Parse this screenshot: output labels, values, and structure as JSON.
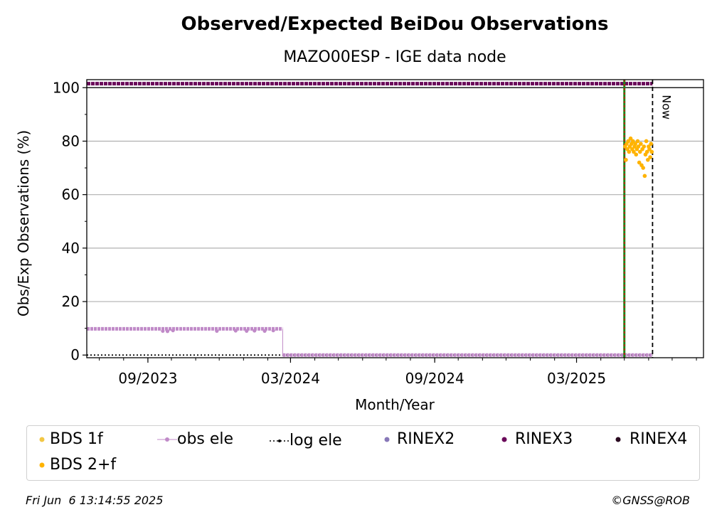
{
  "chart_data": {
    "type": "scatter",
    "title": "Observed/Expected BeiDou Observations",
    "subtitle": "MAZO00ESP - IGE data node",
    "xlabel": "Month/Year",
    "ylabel": "Obs/Exp Observations (%)",
    "x_ticks": [
      "09/2023",
      "03/2024",
      "09/2024",
      "03/2025"
    ],
    "y_ticks": [
      0,
      20,
      40,
      60,
      80,
      100
    ],
    "ylim": [
      -1,
      103
    ],
    "xlim": [
      "2023-06-15",
      "2025-08-10"
    ],
    "grid": "y-major",
    "legend_placement": "below",
    "annotations": {
      "now_label": "Now",
      "now_date": "2025-06-06",
      "marker_date": "2025-05-01"
    },
    "series": [
      {
        "name": "BDS 1f",
        "color": "#f2c744",
        "points": []
      },
      {
        "name": "BDS 2+f",
        "color": "#ffb300",
        "points": [
          [
            "2025-05-02",
            78
          ],
          [
            "2025-05-03",
            73
          ],
          [
            "2025-05-04",
            79
          ],
          [
            "2025-05-05",
            77
          ],
          [
            "2025-05-06",
            80
          ],
          [
            "2025-05-07",
            76
          ],
          [
            "2025-05-08",
            78
          ],
          [
            "2025-05-09",
            81
          ],
          [
            "2025-05-10",
            79
          ],
          [
            "2025-05-11",
            77
          ],
          [
            "2025-05-12",
            80
          ],
          [
            "2025-05-13",
            76
          ],
          [
            "2025-05-14",
            78
          ],
          [
            "2025-05-15",
            79
          ],
          [
            "2025-05-16",
            75
          ],
          [
            "2025-05-17",
            77
          ],
          [
            "2025-05-18",
            80
          ],
          [
            "2025-05-19",
            78
          ],
          [
            "2025-05-20",
            72
          ],
          [
            "2025-05-21",
            76
          ],
          [
            "2025-05-22",
            79
          ],
          [
            "2025-05-23",
            71
          ],
          [
            "2025-05-24",
            77
          ],
          [
            "2025-05-25",
            70
          ],
          [
            "2025-05-26",
            78
          ],
          [
            "2025-05-27",
            67
          ],
          [
            "2025-05-28",
            75
          ],
          [
            "2025-05-29",
            80
          ],
          [
            "2025-05-30",
            76
          ],
          [
            "2025-05-31",
            73
          ],
          [
            "2025-06-01",
            78
          ],
          [
            "2025-06-02",
            77
          ],
          [
            "2025-06-03",
            74
          ],
          [
            "2025-06-04",
            79
          ],
          [
            "2025-06-05",
            76
          ]
        ]
      },
      {
        "name": "obs ele",
        "color": "#c08ac8",
        "segments": [
          {
            "from": "2023-06-15",
            "to": "2024-02-20",
            "value": 9.8
          },
          {
            "from": "2024-02-20",
            "to": "2025-06-06",
            "value": 0
          }
        ],
        "dips": [
          [
            "2023-09-20",
            9.0
          ],
          [
            "2023-09-26",
            8.9
          ],
          [
            "2023-10-03",
            9.2
          ],
          [
            "2023-11-28",
            9.0
          ],
          [
            "2023-12-22",
            9.1
          ],
          [
            "2024-01-05",
            9.0
          ],
          [
            "2024-01-15",
            9.1
          ],
          [
            "2024-01-28",
            9.0
          ],
          [
            "2024-02-08",
            9.2
          ]
        ]
      },
      {
        "name": "log ele",
        "color": "#000000",
        "segments": [
          {
            "from": "2023-06-15",
            "to": "2025-06-06",
            "value": 0
          }
        ]
      },
      {
        "name": "RINEX2",
        "color": "#8878b8",
        "points": []
      },
      {
        "name": "RINEX3",
        "color": "#6a0a5a",
        "segments": [
          {
            "from": "2023-06-15",
            "to": "2025-06-06",
            "value": 101.5
          }
        ]
      },
      {
        "name": "RINEX4",
        "color": "#2a0a20",
        "points": []
      }
    ]
  },
  "legend": {
    "bds1f": "BDS 1f",
    "obs_ele": "obs ele",
    "log_ele": "log ele",
    "rinex2": "RINEX2",
    "rinex3": "RINEX3",
    "rinex4": "RINEX4",
    "bds2f": "BDS 2+f"
  },
  "footer": {
    "timestamp": "Fri Jun  6 13:14:55 2025",
    "credit": "©GNSS@ROB"
  }
}
